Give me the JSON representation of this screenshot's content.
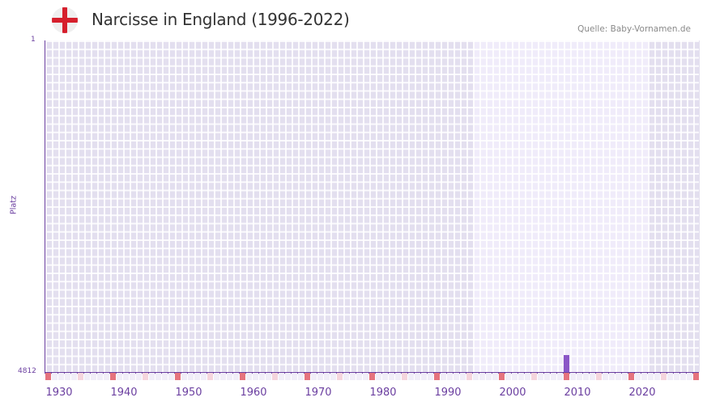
{
  "header": {
    "title": "Narcisse in England (1996-2022)",
    "source": "Quelle: Baby-Vornamen.de",
    "flag_icon": "england-flag-icon"
  },
  "colors": {
    "accent": "#6b3fa0",
    "bar": "#8a56c7",
    "decade_tick": "#e5737d",
    "half_decade_tick": "#f5d5dd",
    "year_tick": "#f1eef8",
    "bg_out_of_range": "#e3dfef",
    "bg_in_range": "#f0ecfa",
    "flag_red": "#d61f2c"
  },
  "chart_data": {
    "type": "bar",
    "title": "Narcisse in England (1996-2022)",
    "xlabel": "",
    "ylabel": "Platz",
    "y_inverted": true,
    "ylim": [
      1,
      4812
    ],
    "y_ticks": [
      "1",
      "4812"
    ],
    "xlim": [
      1930,
      2030
    ],
    "x_ticks": [
      "1930",
      "1940",
      "1950",
      "1960",
      "1970",
      "1980",
      "1990",
      "2000",
      "2010",
      "2020"
    ],
    "highlight_range": [
      1996,
      2022
    ],
    "grid": true,
    "legend": null,
    "categories": [
      2010
    ],
    "values": [
      4565
    ],
    "series": [
      {
        "name": "Platz",
        "points": [
          {
            "year": 2010,
            "rank": 4565
          }
        ]
      }
    ]
  },
  "axis": {
    "y_title": "Platz",
    "y_top": "1",
    "y_bottom": "4812",
    "x_labels": [
      "1930",
      "1940",
      "1950",
      "1960",
      "1970",
      "1980",
      "1990",
      "2000",
      "2010",
      "2020"
    ]
  }
}
